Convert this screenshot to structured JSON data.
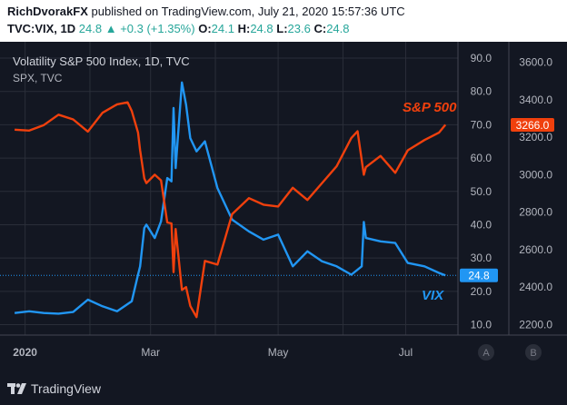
{
  "header": {
    "publisher": "RichDvorakFX",
    "published_text": "published on TradingView.com, July 21, 2020 15:57:36 UTC",
    "symbol": "TVC:VIX, 1D",
    "last": "24.8",
    "change": "+0.3 (+1.35%)",
    "o_label": "O:",
    "o_value": "24.1",
    "h_label": "H:",
    "h_value": "24.8",
    "l_label": "L:",
    "l_value": "23.6",
    "c_label": "C:",
    "c_value": "24.8"
  },
  "legend": {
    "title": "Volatility S&P 500 Index, 1D, TVC",
    "subtitle": "SPX, TVC"
  },
  "annotations": {
    "spx": "S&P 500",
    "vix": "VIX"
  },
  "buttons": {
    "a": "A",
    "b": "B"
  },
  "footer": {
    "brand": "TradingView"
  },
  "colors": {
    "vix": "#2196f3",
    "spx": "#f0400d",
    "background": "#131722",
    "grid": "#2a2e39",
    "axis_text": "#b2b5be"
  },
  "chart_data": {
    "type": "line",
    "x_ticks": [
      "2020",
      "Mar",
      "May",
      "Jul"
    ],
    "y_ticks_vix": [
      10.0,
      20.0,
      30.0,
      40.0,
      50.0,
      60.0,
      70.0,
      80.0,
      90.0
    ],
    "y_ticks_spx": [
      2200.0,
      2400.0,
      2600.0,
      2800.0,
      3000.0,
      3200.0,
      3400.0,
      3600.0
    ],
    "vix_last": "24.8",
    "spx_last": "3266.0",
    "series": [
      {
        "name": "VIX",
        "axis": "left",
        "x": [
          "2019-12-27",
          "2020-01-03",
          "2020-01-10",
          "2020-01-17",
          "2020-01-24",
          "2020-01-31",
          "2020-02-07",
          "2020-02-14",
          "2020-02-21",
          "2020-02-24",
          "2020-02-25",
          "2020-02-27",
          "2020-02-28",
          "2020-03-03",
          "2020-03-06",
          "2020-03-09",
          "2020-03-11",
          "2020-03-12",
          "2020-03-13",
          "2020-03-16",
          "2020-03-18",
          "2020-03-20",
          "2020-03-23",
          "2020-03-27",
          "2020-04-02",
          "2020-04-09",
          "2020-04-17",
          "2020-04-24",
          "2020-05-01",
          "2020-05-08",
          "2020-05-15",
          "2020-05-22",
          "2020-05-29",
          "2020-06-05",
          "2020-06-10",
          "2020-06-11",
          "2020-06-12",
          "2020-06-19",
          "2020-06-26",
          "2020-07-02",
          "2020-07-10",
          "2020-07-17",
          "2020-07-20"
        ],
        "y": [
          13.5,
          14.0,
          13.5,
          13.3,
          13.8,
          17.5,
          15.5,
          14.0,
          17.0,
          25.0,
          27.5,
          39.0,
          40.0,
          36.0,
          41.0,
          54.0,
          53.0,
          75.0,
          57.0,
          82.7,
          76.0,
          66.0,
          62.0,
          65.0,
          51.0,
          41.5,
          38.0,
          35.5,
          37.0,
          27.5,
          32.0,
          29.0,
          27.5,
          25.0,
          27.5,
          40.8,
          36.0,
          35.0,
          34.5,
          28.5,
          27.5,
          25.5,
          24.8
        ]
      },
      {
        "name": "S&P 500",
        "axis": "right",
        "x": [
          "2019-12-27",
          "2020-01-03",
          "2020-01-10",
          "2020-01-17",
          "2020-01-24",
          "2020-01-31",
          "2020-02-07",
          "2020-02-14",
          "2020-02-19",
          "2020-02-21",
          "2020-02-24",
          "2020-02-25",
          "2020-02-27",
          "2020-02-28",
          "2020-03-03",
          "2020-03-06",
          "2020-03-09",
          "2020-03-11",
          "2020-03-12",
          "2020-03-13",
          "2020-03-16",
          "2020-03-18",
          "2020-03-20",
          "2020-03-23",
          "2020-03-27",
          "2020-04-02",
          "2020-04-09",
          "2020-04-17",
          "2020-04-24",
          "2020-05-01",
          "2020-05-08",
          "2020-05-15",
          "2020-05-22",
          "2020-05-29",
          "2020-06-05",
          "2020-06-08",
          "2020-06-11",
          "2020-06-12",
          "2020-06-19",
          "2020-06-26",
          "2020-07-02",
          "2020-07-10",
          "2020-07-17",
          "2020-07-20"
        ],
        "y": [
          3240,
          3235,
          3265,
          3320,
          3295,
          3230,
          3330,
          3375,
          3386,
          3340,
          3225,
          3130,
          2980,
          2955,
          3000,
          2970,
          2745,
          2740,
          2480,
          2710,
          2385,
          2400,
          2300,
          2240,
          2540,
          2520,
          2790,
          2875,
          2840,
          2830,
          2930,
          2865,
          2955,
          3045,
          3195,
          3232,
          3000,
          3040,
          3100,
          3010,
          3130,
          3185,
          3225,
          3266
        ]
      }
    ]
  }
}
